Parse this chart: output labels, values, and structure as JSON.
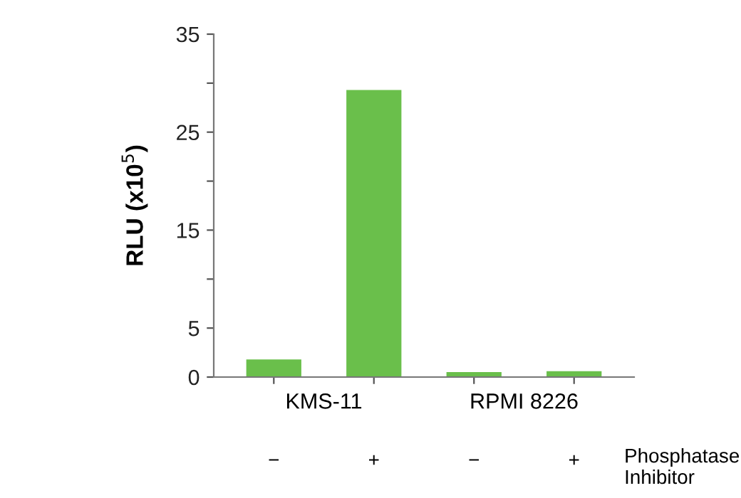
{
  "chart_data": {
    "type": "bar",
    "categories": [
      "−",
      "+",
      "−",
      "+"
    ],
    "values": [
      1.8,
      29.3,
      0.5,
      0.6
    ],
    "color": "#6abf4b",
    "ylabel": "RLU (x10$^{5}$)",
    "xlabel": "Phosphatase\nInhibitor",
    "annotations": [
      "KMS-11",
      "RPMI 8226"
    ],
    "ylim": [
      0,
      35
    ],
    "yticks": [
      0,
      5,
      {
        "value": 10,
        "label": null
      },
      15,
      {
        "value": 20,
        "label": null
      },
      25,
      {
        "value": 30,
        "label": null
      },
      35
    ],
    "grid": false,
    "legend": false
  }
}
